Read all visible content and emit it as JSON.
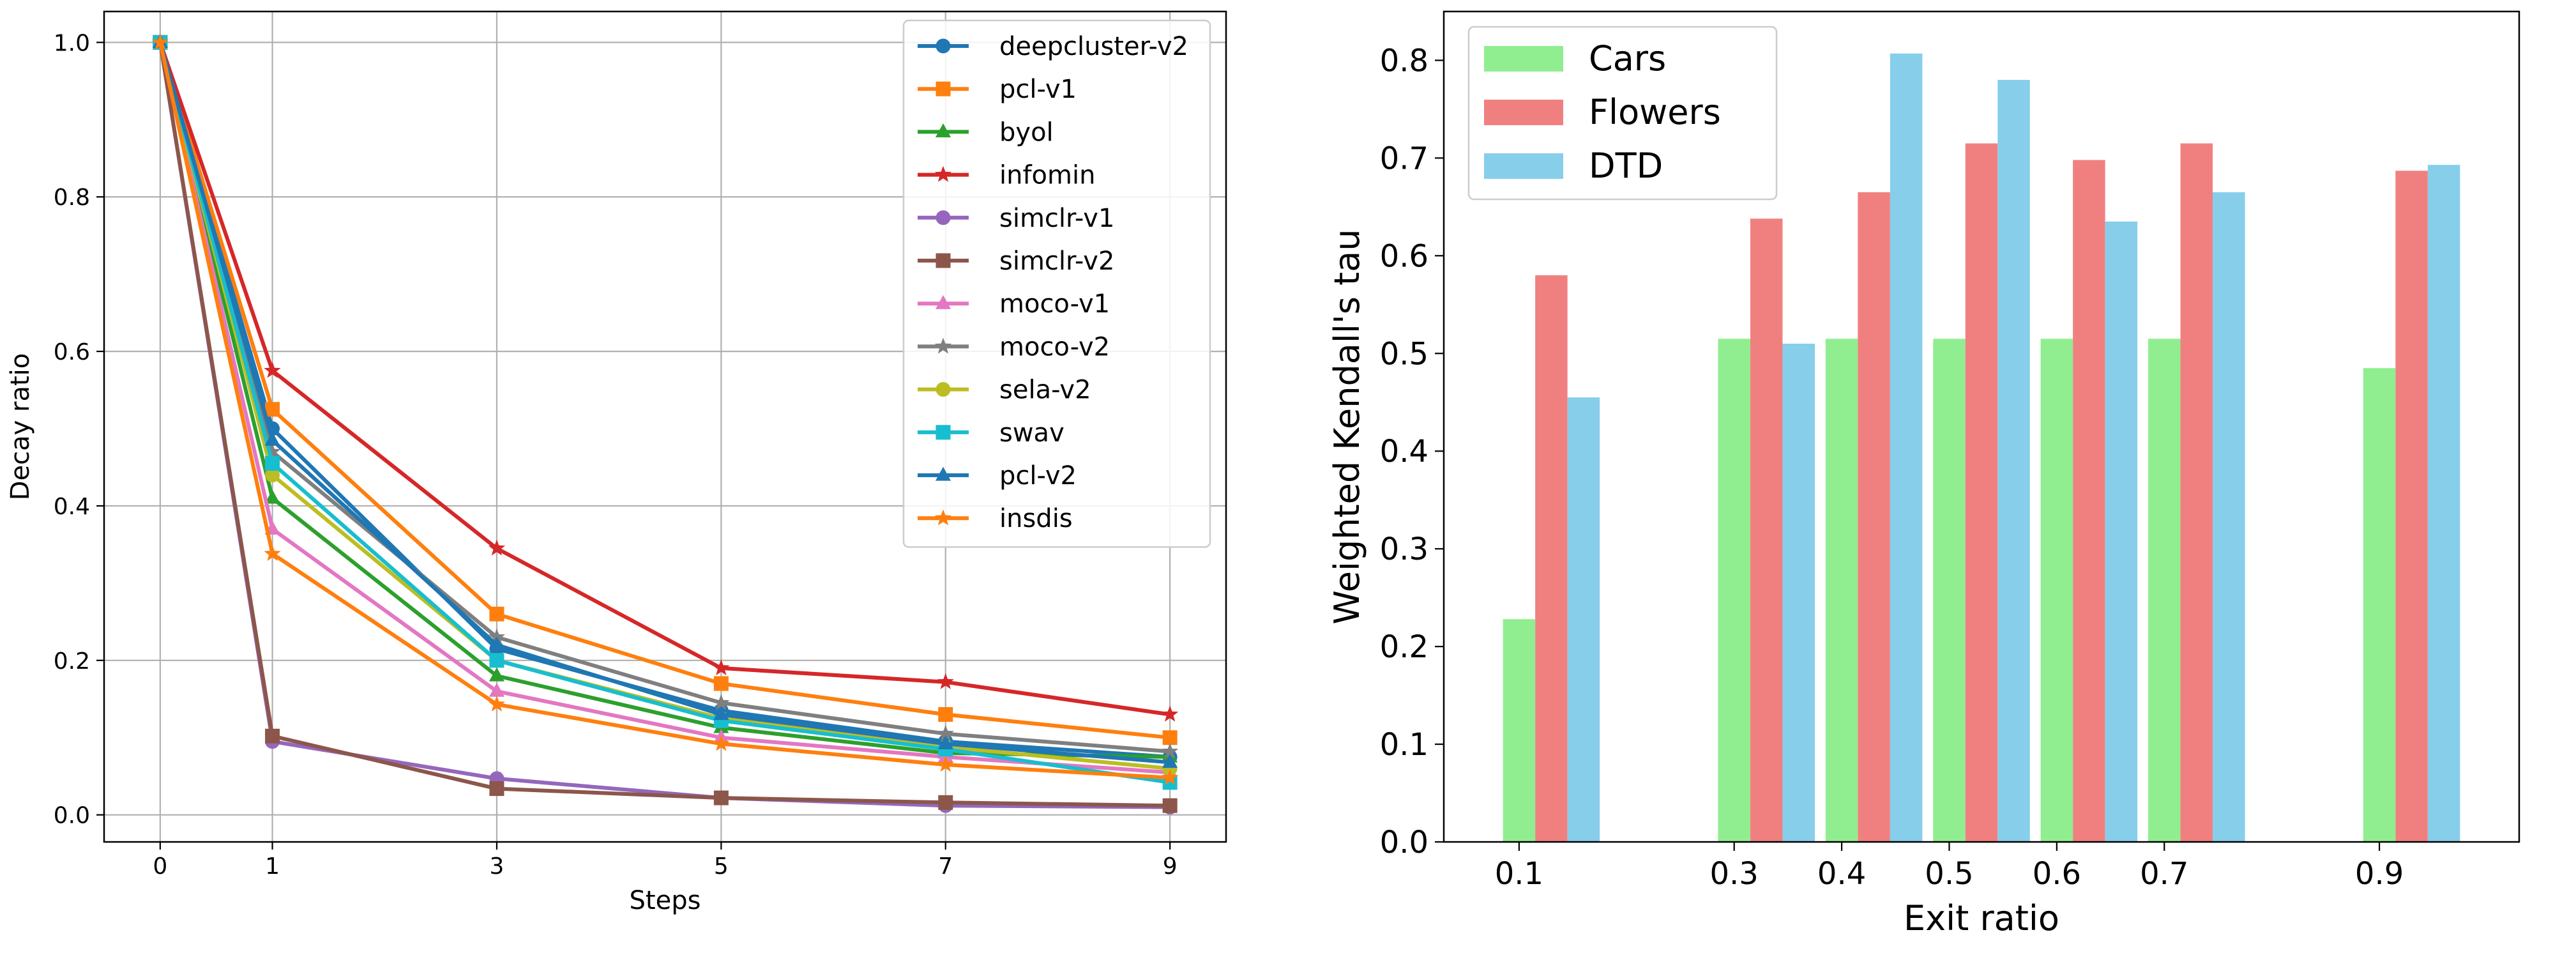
{
  "chart_data": [
    {
      "type": "line",
      "title": "",
      "xlabel": "Steps",
      "ylabel": "Decay ratio",
      "xlim": [
        -0.5,
        9.5
      ],
      "ylim": [
        -0.035,
        1.04
      ],
      "xticks": [
        0,
        1,
        3,
        5,
        7,
        9
      ],
      "yticks": [
        0.0,
        0.2,
        0.4,
        0.6,
        0.8,
        1.0
      ],
      "xtick_labels": [
        "0",
        "1",
        "3",
        "5",
        "7",
        "9"
      ],
      "ytick_labels": [
        "0.0",
        "0.2",
        "0.4",
        "0.6",
        "0.8",
        "1.0"
      ],
      "grid": true,
      "legend_position": "top-right",
      "x": [
        0,
        1,
        3,
        5,
        7,
        9
      ],
      "series": [
        {
          "name": "deepcluster-v2",
          "color": "#1f77b4",
          "marker": "circle",
          "values": [
            1.0,
            0.5,
            0.215,
            0.135,
            0.095,
            0.075
          ]
        },
        {
          "name": "pcl-v1",
          "color": "#ff7f0e",
          "marker": "square",
          "values": [
            1.0,
            0.525,
            0.26,
            0.17,
            0.13,
            0.1
          ]
        },
        {
          "name": "byol",
          "color": "#2ca02c",
          "marker": "triangle",
          "values": [
            1.0,
            0.41,
            0.18,
            0.113,
            0.08,
            0.075
          ]
        },
        {
          "name": "infomin",
          "color": "#d62728",
          "marker": "star",
          "values": [
            1.0,
            0.575,
            0.345,
            0.19,
            0.172,
            0.13
          ]
        },
        {
          "name": "simclr-v1",
          "color": "#9467bd",
          "marker": "circle",
          "values": [
            1.0,
            0.095,
            0.047,
            0.022,
            0.012,
            0.01
          ]
        },
        {
          "name": "simclr-v2",
          "color": "#8c564b",
          "marker": "square",
          "values": [
            1.0,
            0.102,
            0.034,
            0.022,
            0.016,
            0.012
          ]
        },
        {
          "name": "moco-v1",
          "color": "#e377c2",
          "marker": "triangle",
          "values": [
            1.0,
            0.37,
            0.16,
            0.1,
            0.075,
            0.055
          ]
        },
        {
          "name": "moco-v2",
          "color": "#7f7f7f",
          "marker": "star",
          "values": [
            1.0,
            0.47,
            0.23,
            0.145,
            0.105,
            0.082
          ]
        },
        {
          "name": "sela-v2",
          "color": "#bcbd22",
          "marker": "circle",
          "values": [
            1.0,
            0.44,
            0.2,
            0.125,
            0.088,
            0.06
          ]
        },
        {
          "name": "swav",
          "color": "#17becf",
          "marker": "square",
          "values": [
            1.0,
            0.455,
            0.2,
            0.122,
            0.085,
            0.042
          ]
        },
        {
          "name": "pcl-v2",
          "color": "#1f77b4",
          "marker": "triangle",
          "values": [
            1.0,
            0.485,
            0.22,
            0.13,
            0.092,
            0.068
          ]
        },
        {
          "name": "insdis",
          "color": "#ff7f0e",
          "marker": "star",
          "values": [
            1.0,
            0.338,
            0.143,
            0.092,
            0.065,
            0.048
          ]
        }
      ]
    },
    {
      "type": "bar",
      "title": "",
      "xlabel": "Exit ratio",
      "ylabel": "Weighted Kendall's tau",
      "xlim": [
        0.03,
        1.03
      ],
      "ylim": [
        0.0,
        0.85
      ],
      "xticks": [
        0.1,
        0.3,
        0.4,
        0.5,
        0.6,
        0.7,
        0.9
      ],
      "xtick_labels": [
        "0.1",
        "0.3",
        "0.4",
        "0.5",
        "0.6",
        "0.7",
        "0.9"
      ],
      "yticks": [
        0.0,
        0.1,
        0.2,
        0.3,
        0.4,
        0.5,
        0.6,
        0.7,
        0.8
      ],
      "ytick_labels": [
        "0.0",
        "0.1",
        "0.2",
        "0.3",
        "0.4",
        "0.5",
        "0.6",
        "0.7",
        "0.8"
      ],
      "grid": false,
      "legend_position": "top-left",
      "bar_width": 0.03,
      "categories": [
        0.1,
        0.3,
        0.4,
        0.5,
        0.6,
        0.7,
        0.9
      ],
      "series": [
        {
          "name": "Cars",
          "color": "#90ee90",
          "offset": 0.0,
          "values": [
            0.228,
            0.515,
            0.515,
            0.515,
            0.515,
            0.515,
            0.485
          ]
        },
        {
          "name": "Flowers",
          "color": "#f08080",
          "offset": 0.03,
          "values": [
            0.58,
            0.638,
            0.665,
            0.715,
            0.698,
            0.715,
            0.687
          ]
        },
        {
          "name": "DTD",
          "color": "#87ceeb",
          "offset": 0.06,
          "values": [
            0.455,
            0.51,
            0.807,
            0.78,
            0.635,
            0.665,
            0.693
          ]
        }
      ]
    }
  ]
}
